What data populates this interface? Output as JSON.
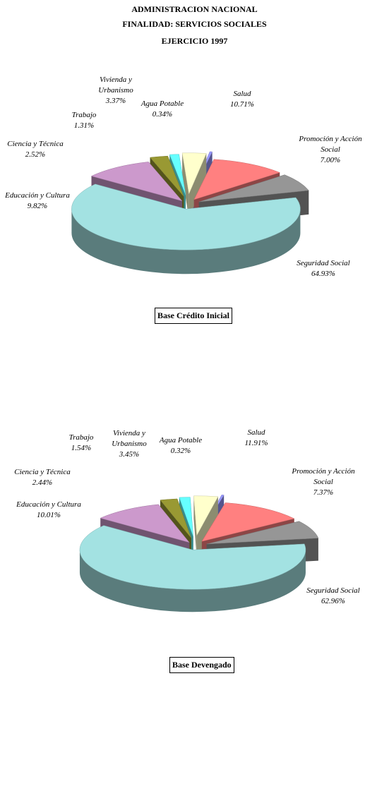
{
  "header": {
    "line1": "ADMINISTRACION NACIONAL",
    "line2": "FINALIDAD: SERVICIOS SOCIALES",
    "line3": "EJERCICIO 1997"
  },
  "chart_data": [
    {
      "type": "pie",
      "subtitle": "Base Crédito Inicial",
      "slices": [
        {
          "label": [
            "Salud"
          ],
          "value": 10.71,
          "pct": "10.71%",
          "color": "#ff8080"
        },
        {
          "label": [
            "Promoción y Acción",
            "Social"
          ],
          "value": 7.0,
          "pct": "7.00%",
          "color": "#969696"
        },
        {
          "label": [
            "Seguridad Social"
          ],
          "value": 64.93,
          "pct": "64.93%",
          "color": "#a3e2e2"
        },
        {
          "label": [
            "Educación y Cultura"
          ],
          "value": 9.82,
          "pct": "9.82%",
          "color": "#cc99cc"
        },
        {
          "label": [
            "Ciencia y Técnica"
          ],
          "value": 2.52,
          "pct": "2.52%",
          "color": "#999933"
        },
        {
          "label": [
            "Trabajo"
          ],
          "value": 1.31,
          "pct": "1.31%",
          "color": "#66ffff"
        },
        {
          "label": [
            "Vivienda y",
            "Urbanismo"
          ],
          "value": 3.37,
          "pct": "3.37%",
          "color": "#ffffcc"
        },
        {
          "label": [
            "Agua Potable"
          ],
          "value": 0.34,
          "pct": "0.34%",
          "color": "#9999ff"
        }
      ]
    },
    {
      "type": "pie",
      "subtitle": "Base Devengado",
      "slices": [
        {
          "label": [
            "Salud"
          ],
          "value": 11.91,
          "pct": "11.91%",
          "color": "#ff8080"
        },
        {
          "label": [
            "Promoción y Acción",
            "Social"
          ],
          "value": 7.37,
          "pct": "7.37%",
          "color": "#969696"
        },
        {
          "label": [
            "Seguridad Social"
          ],
          "value": 62.96,
          "pct": "62.96%",
          "color": "#a3e2e2"
        },
        {
          "label": [
            "Educación y Cultura"
          ],
          "value": 10.01,
          "pct": "10.01%",
          "color": "#cc99cc"
        },
        {
          "label": [
            "Ciencia y Técnica"
          ],
          "value": 2.44,
          "pct": "2.44%",
          "color": "#999933"
        },
        {
          "label": [
            "Trabajo"
          ],
          "value": 1.54,
          "pct": "1.54%",
          "color": "#66ffff"
        },
        {
          "label": [
            "Vivienda y",
            "Urbanismo"
          ],
          "value": 3.45,
          "pct": "3.45%",
          "color": "#ffffcc"
        },
        {
          "label": [
            "Agua Potable"
          ],
          "value": 0.32,
          "pct": "0.32%",
          "color": "#9999ff"
        }
      ]
    }
  ]
}
